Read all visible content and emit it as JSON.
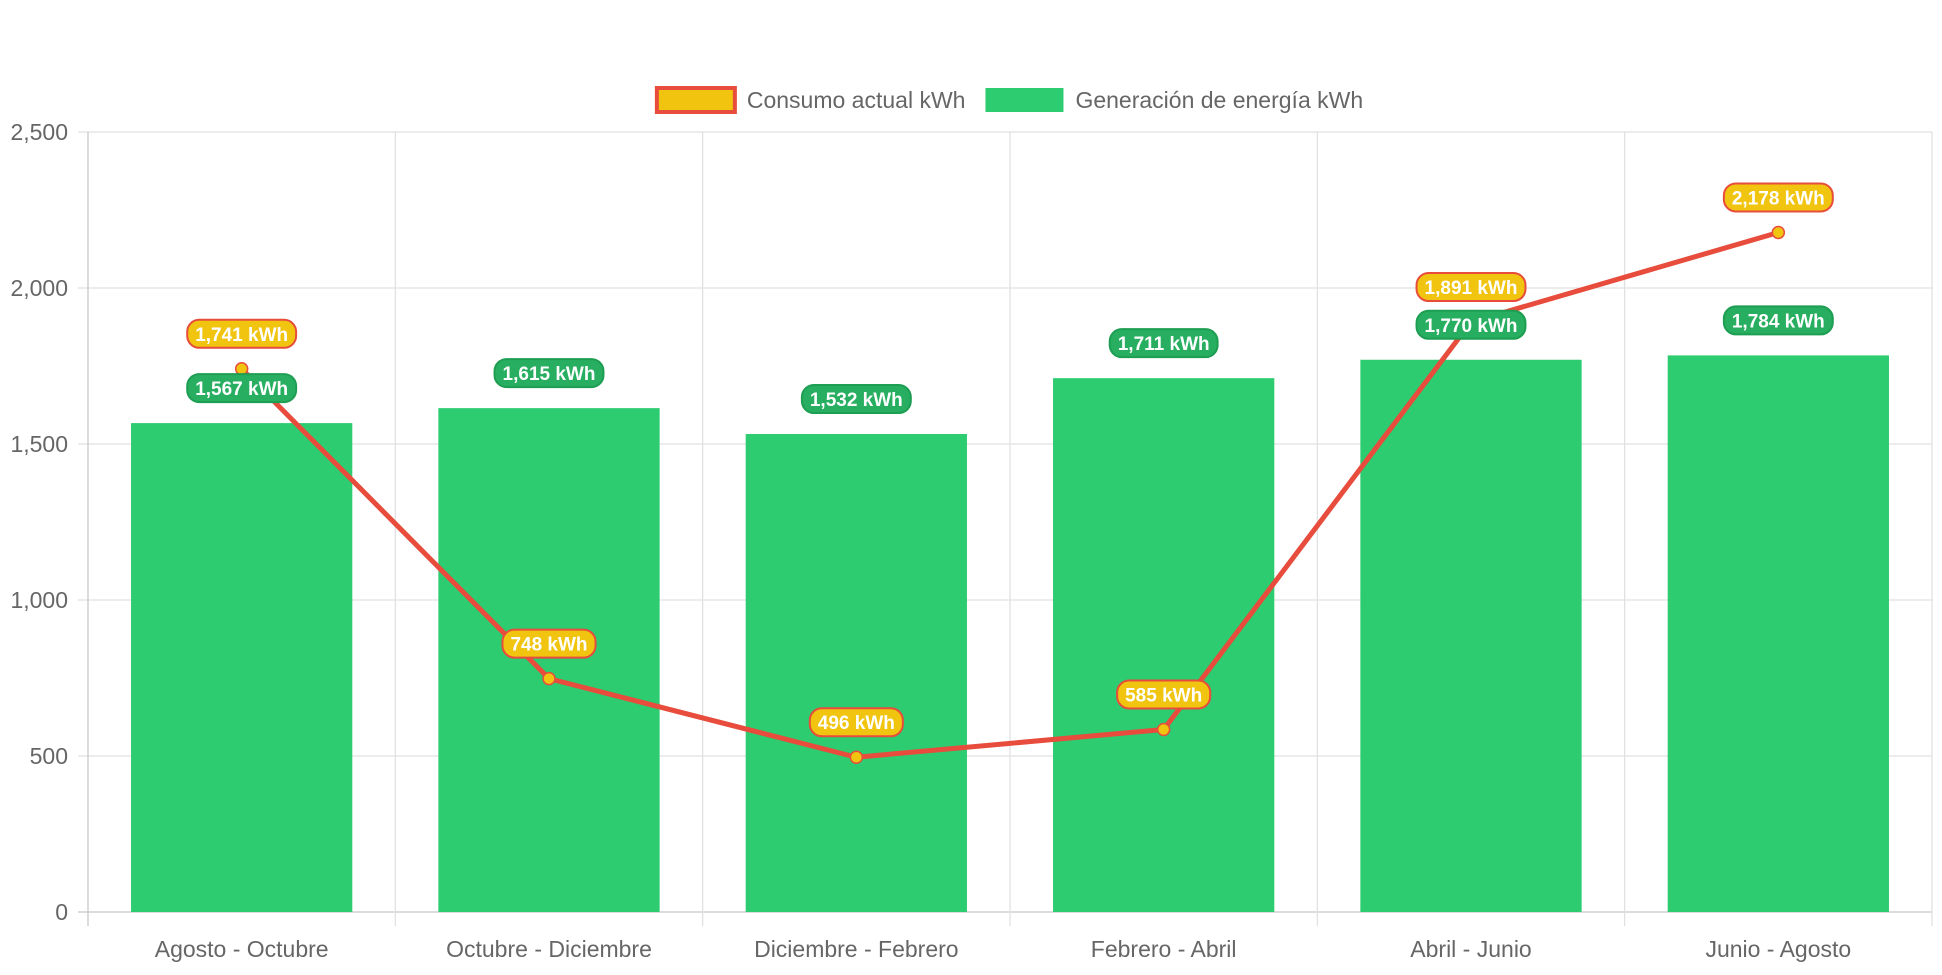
{
  "chart_data": {
    "type": "bar",
    "categories": [
      "Agosto - Octubre",
      "Octubre - Diciembre",
      "Diciembre - Febrero",
      "Febrero - Abril",
      "Abril - Junio",
      "Junio - Agosto"
    ],
    "ylim": [
      0,
      2500
    ],
    "yticks": [
      0,
      500,
      1000,
      1500,
      2000,
      2500
    ],
    "ytick_labels": [
      "0",
      "500",
      "1,000",
      "1,500",
      "2,000",
      "2,500"
    ],
    "grid": true,
    "legend_position": "top-center",
    "series": [
      {
        "name": "Consumo actual kWh",
        "type": "line",
        "values": [
          1741,
          748,
          496,
          585,
          1891,
          2178
        ],
        "labels": [
          "1,741 kWh",
          "748 kWh",
          "496 kWh",
          "585 kWh",
          "1,891 kWh",
          "2,178 kWh"
        ],
        "color": "#e74c3c",
        "fill_color": "#f1c40f"
      },
      {
        "name": "Generación de energía kWh",
        "type": "bar",
        "values": [
          1567,
          1615,
          1532,
          1711,
          1770,
          1784
        ],
        "labels": [
          "1,567 kWh",
          "1,615 kWh",
          "1,532 kWh",
          "1,711 kWh",
          "1,770 kWh",
          "1,784 kWh"
        ],
        "color": "#2ecc71",
        "label_bg": "#27ae60",
        "label_border": "#1e9e53"
      }
    ]
  }
}
